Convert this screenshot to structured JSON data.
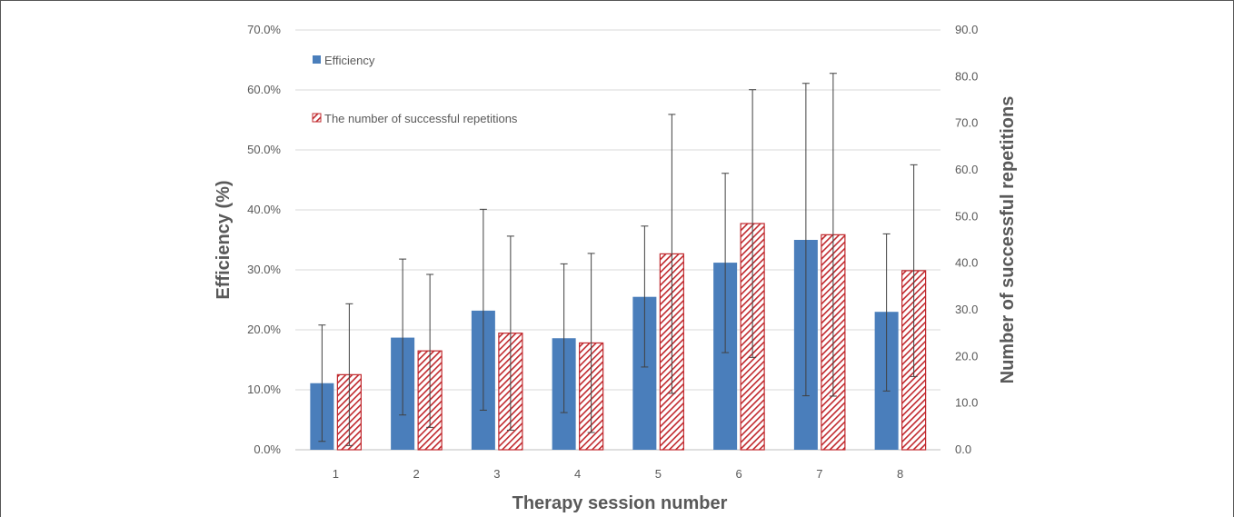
{
  "chart_data": {
    "type": "bar",
    "title": "",
    "categories": [
      "1",
      "2",
      "3",
      "4",
      "5",
      "6",
      "7",
      "8"
    ],
    "xlabel": "Therapy session number",
    "ylabel_left": "Efficiency (%)",
    "ylabel_right": "Number of successful repetitions",
    "y_left": {
      "min": 0,
      "max": 70,
      "step": 10,
      "tick_labels": [
        "0.0%",
        "10.0%",
        "20.0%",
        "30.0%",
        "40.0%",
        "50.0%",
        "60.0%",
        "70.0%"
      ]
    },
    "y_right": {
      "min": 0,
      "max": 90,
      "step": 10,
      "tick_labels": [
        "0.0",
        "10.0",
        "20.0",
        "30.0",
        "40.0",
        "50.0",
        "60.0",
        "70.0",
        "80.0",
        "90.0"
      ]
    },
    "grid": true,
    "legend_position": "top-left",
    "series": [
      {
        "name": "Efficiency",
        "axis": "left",
        "color": "#4a7ebb",
        "pattern": "solid",
        "values": [
          11.1,
          18.7,
          23.2,
          18.6,
          25.5,
          31.2,
          35.0,
          23.0
        ],
        "error_upper": [
          20.8,
          31.8,
          40.1,
          31.0,
          37.3,
          46.1,
          61.1,
          36.0
        ],
        "error_lower": [
          1.4,
          5.8,
          6.6,
          6.2,
          13.8,
          16.2,
          9.0,
          9.8
        ]
      },
      {
        "name": "The number of successful repetitions",
        "axis": "right",
        "color": "#c0282d",
        "pattern": "diagonal-hatch",
        "values": [
          16.1,
          21.2,
          25.0,
          22.9,
          42.0,
          48.5,
          46.1,
          38.4
        ],
        "error_upper": [
          31.3,
          37.6,
          45.8,
          42.1,
          71.9,
          77.2,
          80.7,
          61.1
        ],
        "error_lower": [
          0.9,
          4.8,
          4.2,
          3.7,
          12.1,
          19.8,
          11.5,
          15.7
        ]
      }
    ]
  }
}
